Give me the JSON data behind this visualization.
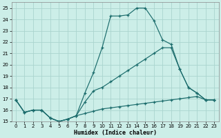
{
  "bg_color": "#cceee8",
  "grid_color": "#aad4ce",
  "line_color": "#1a6b6b",
  "xlabel": "Humidex (Indice chaleur)",
  "xlim": [
    -0.5,
    23.5
  ],
  "ylim": [
    15,
    25.5
  ],
  "xticks": [
    0,
    1,
    2,
    3,
    4,
    5,
    6,
    7,
    8,
    9,
    10,
    11,
    12,
    13,
    14,
    15,
    16,
    17,
    18,
    19,
    20,
    21,
    22,
    23
  ],
  "yticks": [
    15,
    16,
    17,
    18,
    19,
    20,
    21,
    22,
    23,
    24,
    25
  ],
  "line1_y": [
    16.9,
    15.8,
    16.0,
    16.0,
    15.3,
    15.0,
    15.2,
    15.5,
    17.5,
    19.3,
    21.5,
    24.3,
    24.3,
    24.4,
    25.0,
    25.0,
    23.9,
    22.2,
    21.8,
    19.6,
    18.0,
    17.5,
    16.9,
    16.9
  ],
  "line2_y": [
    16.9,
    15.8,
    16.0,
    16.0,
    15.3,
    15.0,
    15.2,
    15.5,
    16.7,
    17.7,
    18.0,
    18.5,
    19.0,
    19.5,
    20.0,
    20.5,
    21.0,
    21.5,
    21.5,
    19.6,
    18.0,
    17.5,
    16.9,
    16.9
  ],
  "line3_y": [
    16.9,
    15.8,
    16.0,
    16.0,
    15.3,
    15.0,
    15.2,
    15.5,
    15.7,
    15.9,
    16.1,
    16.2,
    16.3,
    16.4,
    16.5,
    16.6,
    16.7,
    16.8,
    16.9,
    17.0,
    17.1,
    17.2,
    16.9,
    16.9
  ]
}
